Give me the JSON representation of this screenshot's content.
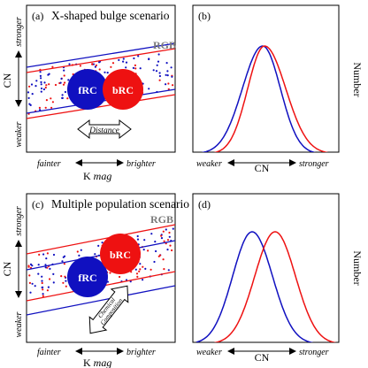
{
  "panels": {
    "a": {
      "label": "(a)",
      "title": "X-shaped bulge scenario",
      "rgb": "RGB",
      "frc": "fRC",
      "brc": "bRC",
      "arrow_label": "Distance",
      "y_label": "CN",
      "y_stronger": "stronger",
      "y_weaker": "weaker",
      "x_fainter": "fainter",
      "x_brighter": "brighter",
      "x_label_main": "K",
      "x_label_unit": "mag"
    },
    "b": {
      "label": "(b)",
      "y_label": "Number",
      "x_weaker": "weaker",
      "x_label": "CN",
      "x_stronger": "stronger"
    },
    "c": {
      "label": "(c)",
      "title": "Multiple population scenario",
      "rgb": "RGB",
      "frc": "fRC",
      "brc": "bRC",
      "arrow_label_1": "Chemical",
      "arrow_label_2": "Composition",
      "y_label": "CN",
      "y_stronger": "stronger",
      "y_weaker": "weaker",
      "x_fainter": "fainter",
      "x_brighter": "brighter",
      "x_label_main": "K",
      "x_label_unit": "mag"
    },
    "d": {
      "label": "(d)",
      "y_label": "Number",
      "x_weaker": "weaker",
      "x_label": "CN",
      "x_stronger": "stronger"
    }
  },
  "colors": {
    "blue": "#1010c0",
    "red": "#ee1111",
    "gray": "#7a7a7a"
  }
}
